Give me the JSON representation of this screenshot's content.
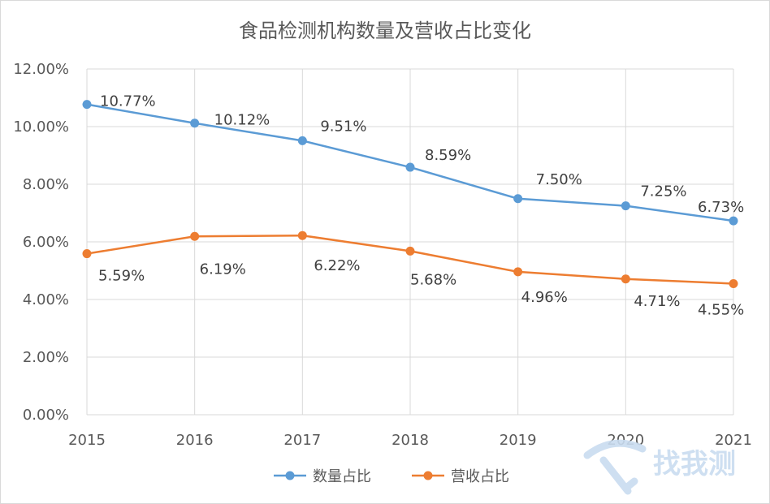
{
  "chart_data": {
    "type": "line",
    "title": "食品检测机构数量及营收占比变化",
    "categories": [
      "2015",
      "2016",
      "2017",
      "2018",
      "2019",
      "2020",
      "2021"
    ],
    "ylim": [
      0,
      12
    ],
    "yticks": [
      "0.00%",
      "2.00%",
      "4.00%",
      "6.00%",
      "8.00%",
      "10.00%",
      "12.00%"
    ],
    "grid": true,
    "legend_position": "bottom",
    "series": [
      {
        "name": "数量占比",
        "color": "#5b9bd5",
        "values": [
          10.77,
          10.12,
          9.51,
          8.59,
          7.5,
          7.25,
          6.73
        ],
        "labels": [
          "10.77%",
          "10.12%",
          "9.51%",
          "8.59%",
          "7.50%",
          "7.25%",
          "6.73%"
        ]
      },
      {
        "name": "营收占比",
        "color": "#ed7d31",
        "values": [
          5.59,
          6.19,
          6.22,
          5.68,
          4.96,
          4.71,
          4.55
        ],
        "labels": [
          "5.59%",
          "6.19%",
          "6.22%",
          "5.68%",
          "4.96%",
          "4.71%",
          "4.55%"
        ]
      }
    ]
  },
  "watermark": {
    "text": "找我测",
    "icon": "pickaxe-logo-icon"
  }
}
